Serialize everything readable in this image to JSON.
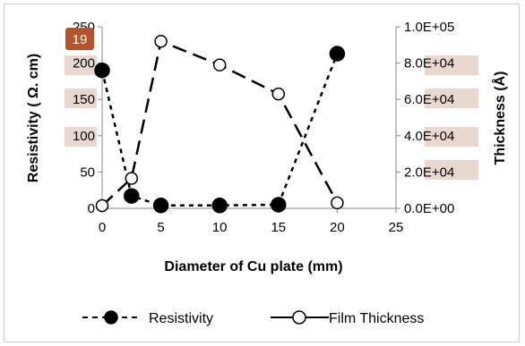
{
  "badge": {
    "label": "19",
    "color": "#b5542b"
  },
  "highlight_color": "#e8d8cf",
  "chart_data": {
    "type": "line",
    "xlabel": "Diameter of Cu plate (mm)",
    "ylabel_left": "Resistivity ( Ω. cm)",
    "ylabel_right": "Thickness (Å)",
    "xlim": [
      0,
      25
    ],
    "ylim_left": [
      0,
      250
    ],
    "ylim_right": [
      0,
      100000
    ],
    "x_ticks": [
      "0",
      "5",
      "10",
      "15",
      "20",
      "25"
    ],
    "y_left_ticks": [
      "0",
      "50",
      "100",
      "150",
      "200",
      "250"
    ],
    "y_right_ticks": [
      "0.0E+00",
      "2.0E+04",
      "4.0E+04",
      "6.0E+04",
      "8.0E+04",
      "1.0E+05"
    ],
    "grid": false,
    "legend_position": "bottom",
    "series": [
      {
        "name": "Resistivity",
        "axis": "left",
        "style": "short-dash",
        "marker": "filled-circle",
        "color": "#000000",
        "x": [
          0,
          2.5,
          5,
          10,
          15,
          20
        ],
        "y": [
          190,
          17,
          4,
          4,
          5,
          213
        ]
      },
      {
        "name": "Film Thickness",
        "axis": "right",
        "style": "long-dash",
        "marker": "open-circle",
        "color": "#000000",
        "x": [
          0,
          2.5,
          5,
          10,
          15,
          20
        ],
        "y": [
          1500,
          16500,
          92000,
          79000,
          63000,
          3000
        ]
      }
    ]
  }
}
